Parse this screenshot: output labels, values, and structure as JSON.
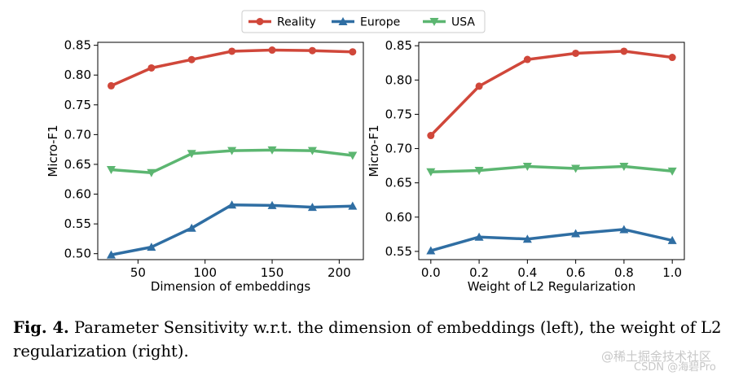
{
  "colors": {
    "reality": "#d0473a",
    "europe": "#2f6ea3",
    "usa": "#5cb671"
  },
  "legend": {
    "items": [
      {
        "label": "Reality",
        "marker": "circle",
        "color": "#d0473a"
      },
      {
        "label": "Europe",
        "marker": "triangle-up",
        "color": "#2f6ea3"
      },
      {
        "label": "USA",
        "marker": "triangle-down",
        "color": "#5cb671"
      }
    ]
  },
  "chart_data": [
    {
      "type": "line",
      "title": "",
      "xlabel": "Dimension of embeddings",
      "ylabel": "Micro-F1",
      "xlim": [
        20,
        218
      ],
      "ylim": [
        0.49,
        0.855
      ],
      "xticks": [
        50,
        100,
        150,
        200
      ],
      "xtick_labels": [
        "50",
        "100",
        "150",
        "200"
      ],
      "yticks": [
        0.5,
        0.55,
        0.6,
        0.65,
        0.7,
        0.75,
        0.8,
        0.85
      ],
      "ytick_labels": [
        "0.50",
        "0.55",
        "0.60",
        "0.65",
        "0.70",
        "0.75",
        "0.80",
        "0.85"
      ],
      "x": [
        30,
        60,
        90,
        120,
        150,
        180,
        210
      ],
      "series": [
        {
          "name": "Reality",
          "values": [
            0.782,
            0.812,
            0.826,
            0.84,
            0.842,
            0.841,
            0.839
          ]
        },
        {
          "name": "Europe",
          "values": [
            0.498,
            0.511,
            0.543,
            0.582,
            0.581,
            0.578,
            0.58
          ]
        },
        {
          "name": "USA",
          "values": [
            0.641,
            0.636,
            0.668,
            0.673,
            0.674,
            0.673,
            0.665
          ]
        }
      ]
    },
    {
      "type": "line",
      "title": "",
      "xlabel": "Weight of L2 Regularization",
      "ylabel": "Micro-F1",
      "xlim": [
        -0.05,
        1.05
      ],
      "ylim": [
        0.538,
        0.855
      ],
      "xticks": [
        0.0,
        0.2,
        0.4,
        0.6,
        0.8,
        1.0
      ],
      "xtick_labels": [
        "0.0",
        "0.2",
        "0.4",
        "0.6",
        "0.8",
        "1.0"
      ],
      "yticks": [
        0.55,
        0.6,
        0.65,
        0.7,
        0.75,
        0.8,
        0.85
      ],
      "ytick_labels": [
        "0.55",
        "0.60",
        "0.65",
        "0.70",
        "0.75",
        "0.80",
        "0.85"
      ],
      "x": [
        0.0,
        0.2,
        0.4,
        0.6,
        0.8,
        1.0
      ],
      "series": [
        {
          "name": "Reality",
          "values": [
            0.719,
            0.791,
            0.83,
            0.839,
            0.842,
            0.833
          ]
        },
        {
          "name": "Europe",
          "values": [
            0.551,
            0.571,
            0.568,
            0.576,
            0.582,
            0.566
          ]
        },
        {
          "name": "USA",
          "values": [
            0.666,
            0.668,
            0.674,
            0.671,
            0.674,
            0.667
          ]
        }
      ]
    }
  ],
  "caption": {
    "label": "Fig. 4.",
    "text": "Parameter Sensitivity w.r.t. the dimension of embeddings (left), the weight of L2 regularization (right)."
  },
  "watermark": {
    "line1": "@稀土掘金技术社区",
    "line2": "CSDN @海碧Pro"
  }
}
